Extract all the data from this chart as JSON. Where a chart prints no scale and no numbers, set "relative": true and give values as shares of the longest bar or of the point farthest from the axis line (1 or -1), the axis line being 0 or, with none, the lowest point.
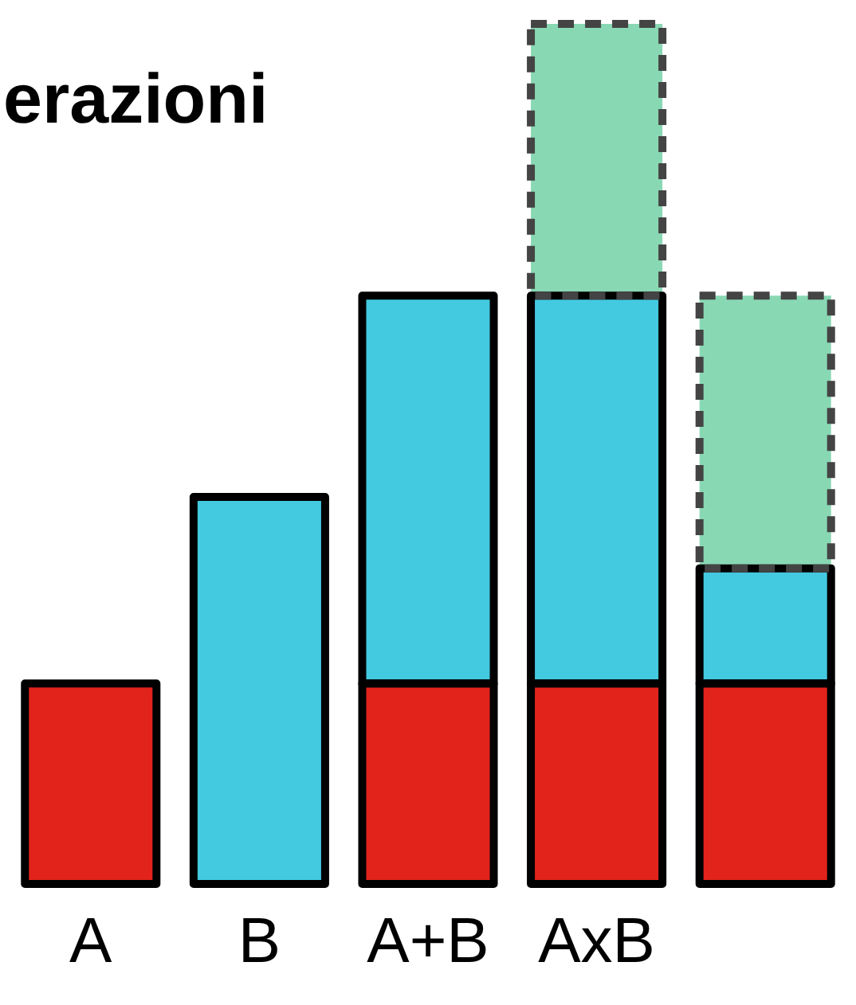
{
  "chart_data": {
    "type": "bar",
    "title": "erazioni",
    "relative": true,
    "stacked": true,
    "legend": false,
    "grid": false,
    "categories": [
      "A",
      "B",
      "A+B",
      "AxB",
      null
    ],
    "series": [
      {
        "color": "#e2231c",
        "line_style": "solid",
        "values": [
          0.233,
          null,
          0.233,
          0.233,
          0.233
        ]
      },
      {
        "color": "#43cae0",
        "line_style": "solid",
        "values": [
          null,
          0.45,
          0.451,
          0.451,
          0.134
        ]
      },
      {
        "color": "#89d8b4",
        "line_style": "dashed",
        "values": [
          null,
          null,
          null,
          0.316,
          0.317
        ]
      }
    ]
  }
}
